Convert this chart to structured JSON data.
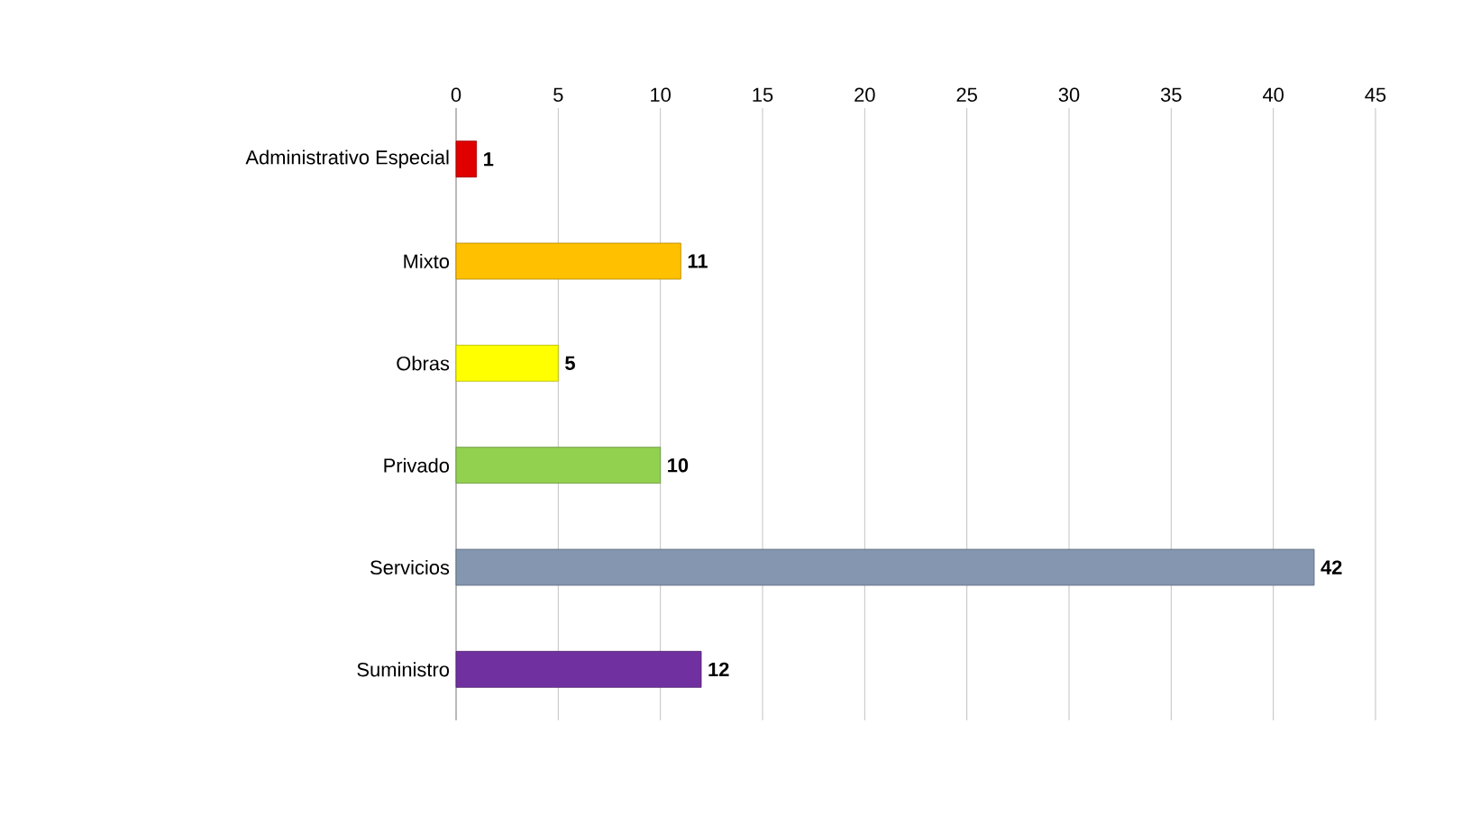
{
  "chart_data": {
    "type": "bar",
    "orientation": "horizontal",
    "categories": [
      "Administrativo Especial",
      "Mixto",
      "Obras",
      "Privado",
      "Servicios",
      "Suministro"
    ],
    "values": [
      1,
      11,
      5,
      10,
      42,
      12
    ],
    "colors": [
      "#e00000",
      "#ffc000",
      "#ffff00",
      "#92d050",
      "#8496b0",
      "#7030a0"
    ],
    "xlim": [
      0,
      45
    ],
    "xticks": [
      0,
      5,
      10,
      15,
      20,
      25,
      30,
      35,
      40,
      45
    ],
    "grid": "x",
    "data_labels": true
  }
}
